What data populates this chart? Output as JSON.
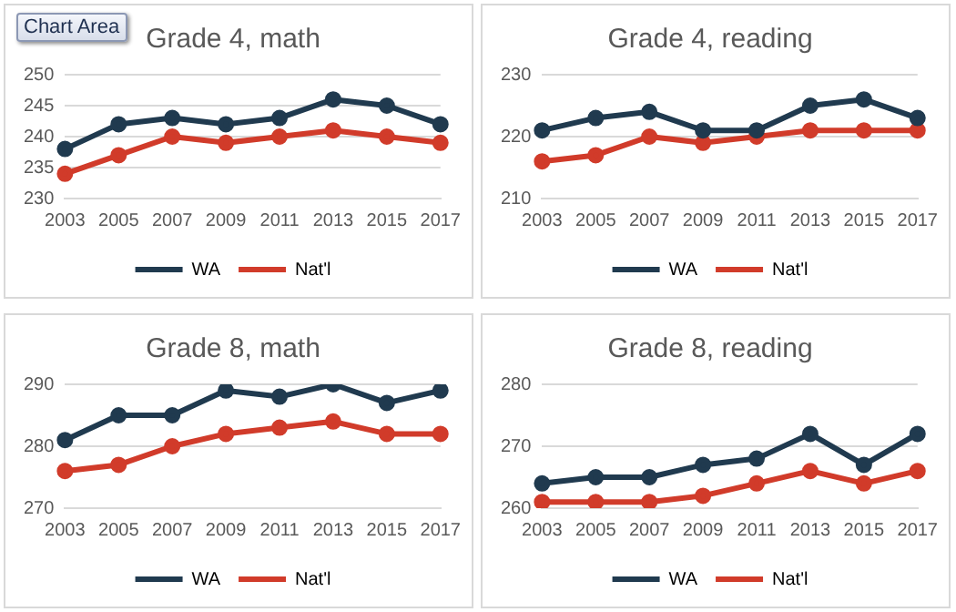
{
  "chart_data": [
    {
      "type": "line",
      "title": "Grade 4, math",
      "annotations": [
        "Chart Area"
      ],
      "categories": [
        "2003",
        "2005",
        "2007",
        "2009",
        "2011",
        "2013",
        "2015",
        "2017"
      ],
      "series": [
        {
          "name": "WA",
          "color": "#203a4f",
          "values": [
            238,
            242,
            243,
            242,
            243,
            246,
            245,
            242
          ]
        },
        {
          "name": "Nat'l",
          "color": "#d13b2a",
          "values": [
            234,
            237,
            240,
            239,
            240,
            241,
            240,
            239
          ]
        }
      ],
      "ylim": [
        230,
        250
      ],
      "yticks": [
        230,
        235,
        240,
        245,
        250
      ],
      "grid": "y",
      "legend": "bottom",
      "marker": "circle",
      "line_style": "solid"
    },
    {
      "type": "line",
      "title": "Grade 4, reading",
      "categories": [
        "2003",
        "2005",
        "2007",
        "2009",
        "2011",
        "2013",
        "2015",
        "2017"
      ],
      "series": [
        {
          "name": "WA",
          "color": "#203a4f",
          "values": [
            221,
            223,
            224,
            221,
            221,
            225,
            226,
            223
          ]
        },
        {
          "name": "Nat'l",
          "color": "#d13b2a",
          "values": [
            216,
            217,
            220,
            219,
            220,
            221,
            221,
            221
          ]
        }
      ],
      "ylim": [
        210,
        230
      ],
      "yticks": [
        210,
        220,
        230
      ],
      "grid": "y",
      "legend": "bottom",
      "marker": "circle",
      "line_style": "solid"
    },
    {
      "type": "line",
      "title": "Grade 8, math",
      "categories": [
        "2003",
        "2005",
        "2007",
        "2009",
        "2011",
        "2013",
        "2015",
        "2017"
      ],
      "series": [
        {
          "name": "WA",
          "color": "#203a4f",
          "values": [
            281,
            285,
            285,
            289,
            288,
            290,
            287,
            289
          ]
        },
        {
          "name": "Nat'l",
          "color": "#d13b2a",
          "values": [
            276,
            277,
            280,
            282,
            283,
            284,
            282,
            282
          ]
        }
      ],
      "ylim": [
        270,
        290
      ],
      "yticks": [
        270,
        280,
        290
      ],
      "grid": "y",
      "legend": "bottom",
      "marker": "circle",
      "line_style": "solid"
    },
    {
      "type": "line",
      "title": "Grade 8, reading",
      "categories": [
        "2003",
        "2005",
        "2007",
        "2009",
        "2011",
        "2013",
        "2015",
        "2017"
      ],
      "series": [
        {
          "name": "WA",
          "color": "#203a4f",
          "values": [
            264,
            265,
            265,
            267,
            268,
            272,
            267,
            272
          ]
        },
        {
          "name": "Nat'l",
          "color": "#d13b2a",
          "values": [
            261,
            261,
            261,
            262,
            264,
            266,
            264,
            266
          ]
        }
      ],
      "ylim": [
        260,
        280
      ],
      "yticks": [
        260,
        270,
        280
      ],
      "grid": "y",
      "legend": "bottom",
      "marker": "circle",
      "line_style": "solid"
    }
  ]
}
